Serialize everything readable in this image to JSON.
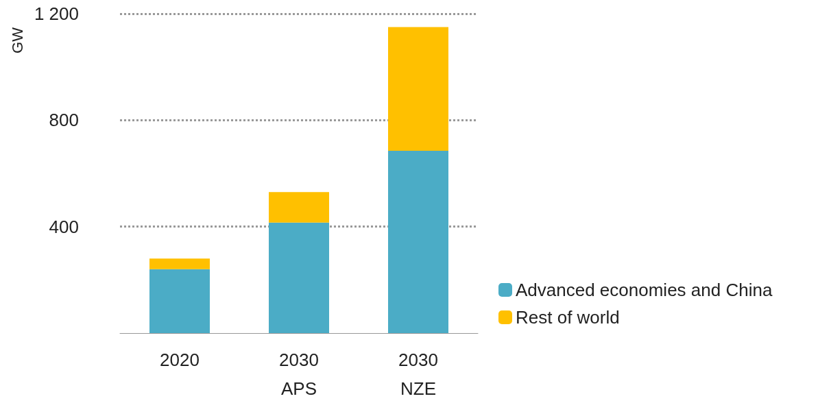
{
  "chart_data": {
    "type": "bar",
    "ylabel": "GW",
    "categories": [
      "2020",
      "2030\nAPS",
      "2030\nNZE"
    ],
    "series": [
      {
        "name": "Advanced economies and China",
        "color": "#4bacc6",
        "values": [
          240,
          415,
          685
        ]
      },
      {
        "name": "Rest of world",
        "color": "#ffc000",
        "values": [
          40,
          115,
          465
        ]
      }
    ],
    "stacked": true,
    "ylim": [
      0,
      1200
    ],
    "yticks": [
      400,
      800,
      {
        "value": 1200,
        "label": "1 200"
      }
    ],
    "grid": "y",
    "legend": "right"
  }
}
